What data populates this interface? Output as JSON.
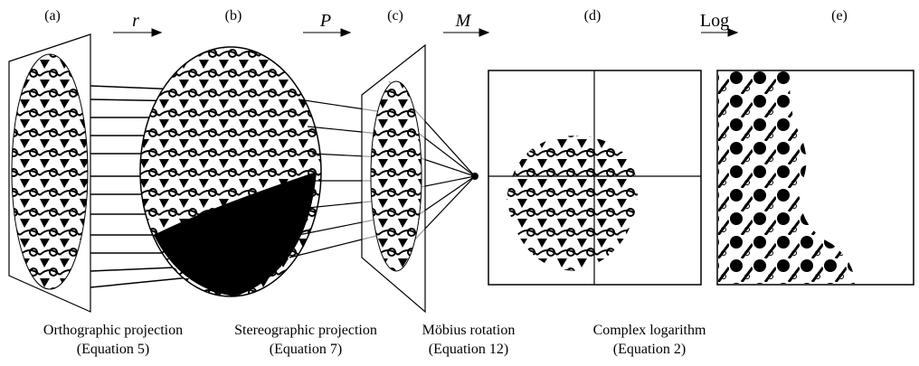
{
  "panels": [
    {
      "label": "(a)"
    },
    {
      "label": "(b)"
    },
    {
      "label": "(c)"
    },
    {
      "label": "(d)"
    },
    {
      "label": "(e)"
    }
  ],
  "arrows": [
    {
      "label": "r"
    },
    {
      "label": "P"
    },
    {
      "label": "M"
    },
    {
      "label": "Log"
    }
  ],
  "captions": [
    {
      "line1": "Orthographic projection",
      "line2": "(Equation 5)"
    },
    {
      "line1": "Stereographic projection",
      "line2": "(Equation 7)"
    },
    {
      "line1": "Möbius rotation",
      "line2": "(Equation 12)"
    },
    {
      "line1": "Complex logarithm",
      "line2": "(Equation 2)"
    }
  ]
}
